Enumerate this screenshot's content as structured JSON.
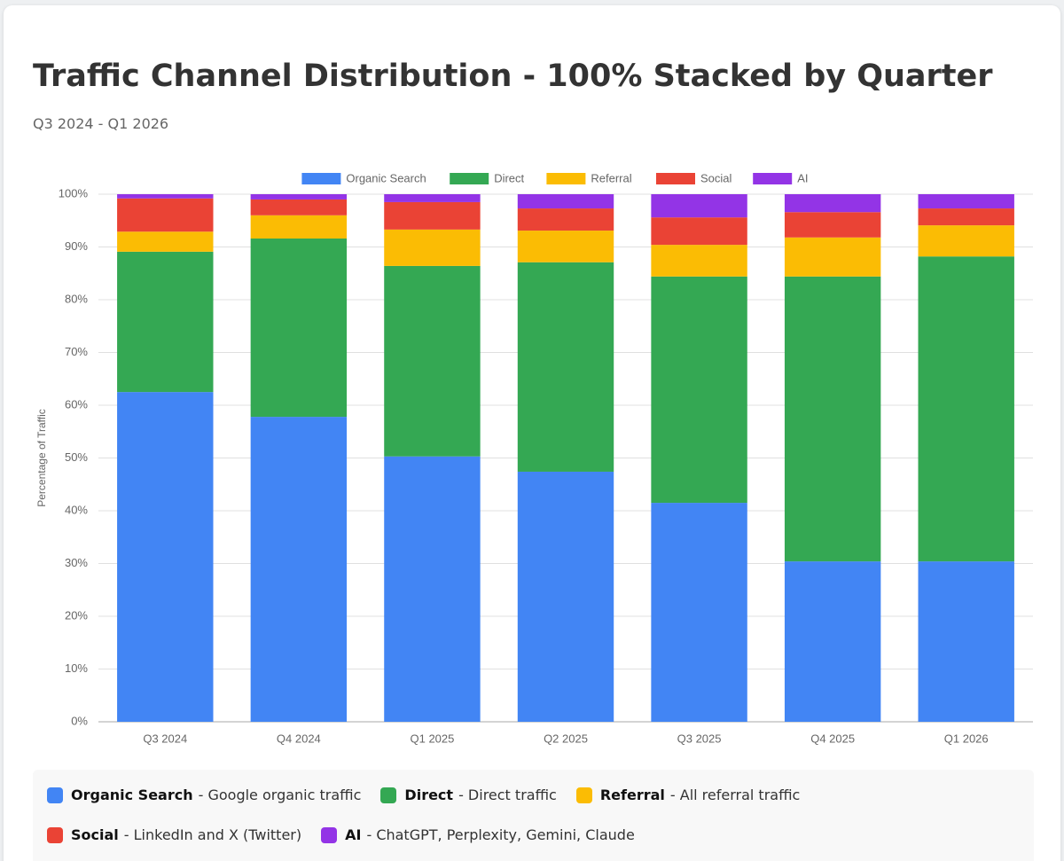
{
  "chart_data": {
    "type": "stacked_bar",
    "title": "Traffic Channel Distribution - 100% Stacked by Quarter",
    "subtitle": "Q3 2024 - Q1 2026",
    "y_label": "Percentage of Traffic",
    "categories": [
      "Q3 2024",
      "Q4 2024",
      "Q1 2025",
      "Q2 2025",
      "Q3 2025",
      "Q4 2025",
      "Q1 2026"
    ],
    "series": [
      {
        "name": "Organic Search",
        "color": "#4285f4",
        "description": "- Google organic traffic",
        "values": [
          62.5,
          57.8,
          50.3,
          47.4,
          41.5,
          30.4,
          30.4
        ]
      },
      {
        "name": "Direct",
        "color": "#34a853",
        "description": "- Direct traffic",
        "values": [
          26.6,
          33.8,
          36.1,
          39.7,
          42.9,
          54.0,
          57.8
        ]
      },
      {
        "name": "Referral",
        "color": "#fbbc04",
        "description": "- All referral traffic",
        "values": [
          3.8,
          4.4,
          6.9,
          6.0,
          6.0,
          7.4,
          5.9
        ]
      },
      {
        "name": "Social",
        "color": "#ea4335",
        "description": "- LinkedIn and X (Twitter)",
        "values": [
          6.3,
          3.0,
          5.2,
          4.2,
          5.2,
          4.8,
          3.2
        ]
      },
      {
        "name": "AI",
        "color": "#9334e6",
        "description": "- ChatGPT, Perplexity, Gemini, Claude",
        "values": [
          0.8,
          1.0,
          1.5,
          2.7,
          4.4,
          3.4,
          2.7
        ]
      }
    ],
    "ylim": [
      0,
      100
    ],
    "yticks": [
      {
        "value": 0,
        "label": "0%"
      },
      {
        "value": 10,
        "label": "10%"
      },
      {
        "value": 20,
        "label": "20%"
      },
      {
        "value": 30,
        "label": "30%"
      },
      {
        "value": 40,
        "label": "40%"
      },
      {
        "value": 50,
        "label": "50%"
      },
      {
        "value": 60,
        "label": "60%"
      },
      {
        "value": 70,
        "label": "70%"
      },
      {
        "value": 80,
        "label": "80%"
      },
      {
        "value": 90,
        "label": "90%"
      },
      {
        "value": 100,
        "label": "100%"
      }
    ],
    "grid": true,
    "legend": "top"
  }
}
